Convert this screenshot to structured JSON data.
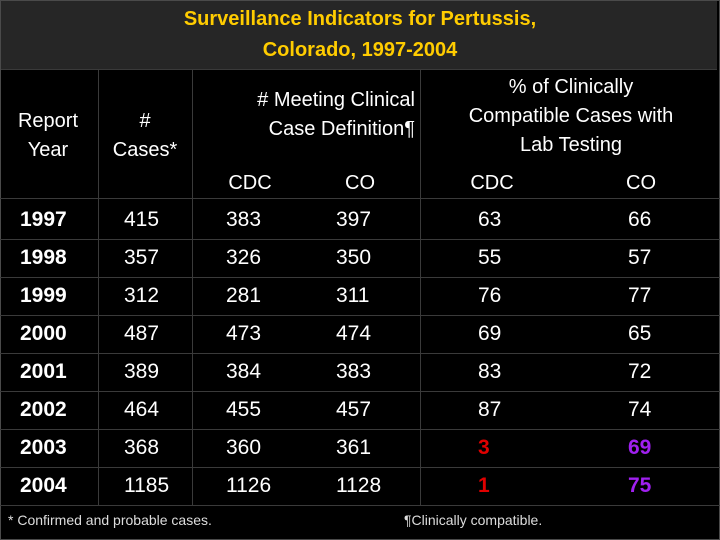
{
  "title": {
    "line1": "Surveillance Indicators for Pertussis,",
    "line2": "Colorado, 1997-2004"
  },
  "headers": {
    "report_year": [
      "Report",
      "Year"
    ],
    "cases": [
      "#",
      "Cases*"
    ],
    "meeting": [
      "# Meeting Clinical",
      "Case Definition¶"
    ],
    "pct": [
      "% of Clinically",
      "Compatible Cases with",
      "Lab Testing"
    ],
    "sub": {
      "meeting_cdc": "CDC",
      "meeting_co": "CO",
      "pct_cdc": "CDC",
      "pct_co": "CO"
    }
  },
  "rows": [
    {
      "year": "1997",
      "cases": "415",
      "m_cdc": "383",
      "m_co": "397",
      "p_cdc": "63",
      "p_co": "66"
    },
    {
      "year": "1998",
      "cases": "357",
      "m_cdc": "326",
      "m_co": "350",
      "p_cdc": "55",
      "p_co": "57"
    },
    {
      "year": "1999",
      "cases": "312",
      "m_cdc": "281",
      "m_co": "311",
      "p_cdc": "76",
      "p_co": "77"
    },
    {
      "year": "2000",
      "cases": "487",
      "m_cdc": "473",
      "m_co": "474",
      "p_cdc": "69",
      "p_co": "65"
    },
    {
      "year": "2001",
      "cases": "389",
      "m_cdc": "384",
      "m_co": "383",
      "p_cdc": "83",
      "p_co": "72"
    },
    {
      "year": "2002",
      "cases": "464",
      "m_cdc": "455",
      "m_co": "457",
      "p_cdc": "87",
      "p_co": "74"
    },
    {
      "year": "2003",
      "cases": "368",
      "m_cdc": "360",
      "m_co": "361",
      "p_cdc": "3",
      "p_co": "69"
    },
    {
      "year": "2004",
      "cases": "1185",
      "m_cdc": "1126",
      "m_co": "1128",
      "p_cdc": "1",
      "p_co": "75"
    }
  ],
  "footnotes": {
    "confirmed": "* Confirmed and probable cases.",
    "clinical": "¶Clinically compatible."
  },
  "colors": {
    "title": "#ffcc00",
    "highlight_red": "#e00000",
    "highlight_purple": "#a020f0"
  }
}
